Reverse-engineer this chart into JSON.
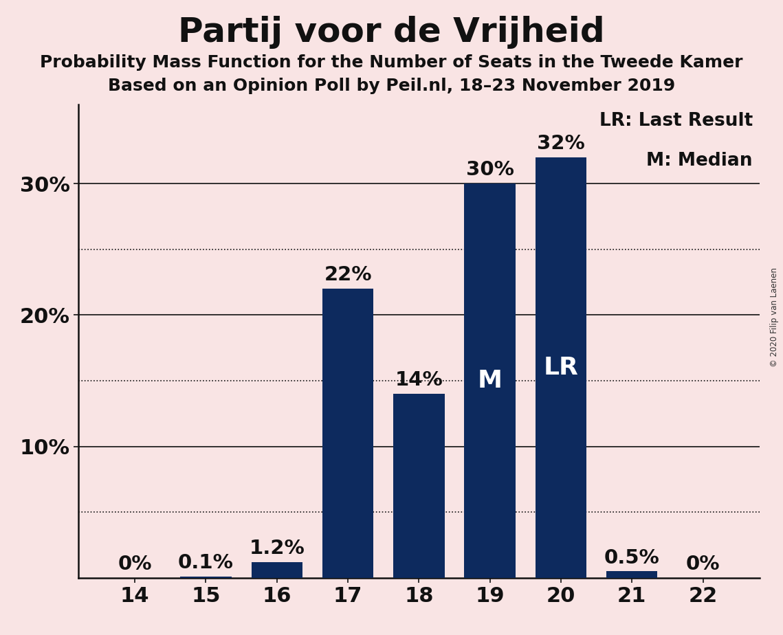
{
  "title": "Partij voor de Vrijheid",
  "subtitle1": "Probability Mass Function for the Number of Seats in the Tweede Kamer",
  "subtitle2": "Based on an Opinion Poll by Peil.nl, 18–23 November 2019",
  "copyright": "© 2020 Filip van Laenen",
  "categories": [
    14,
    15,
    16,
    17,
    18,
    19,
    20,
    21,
    22
  ],
  "values": [
    0.0,
    0.1,
    1.2,
    22.0,
    14.0,
    30.0,
    32.0,
    0.5,
    0.0
  ],
  "bar_color": "#0d2a5e",
  "background_color": "#f9e4e4",
  "solid_gridlines": [
    10,
    20,
    30
  ],
  "dotted_gridlines": [
    5,
    15,
    25
  ],
  "ytick_positions": [
    10,
    20,
    30
  ],
  "ytick_labels": [
    "10%",
    "20%",
    "30%"
  ],
  "ylim": [
    0,
    36
  ],
  "legend_text": [
    "LR: Last Result",
    "M: Median"
  ],
  "label_strings": [
    "0%",
    "0.1%",
    "1.2%",
    "22%",
    "14%",
    "30%",
    "32%",
    "0.5%",
    "0%"
  ],
  "inside_labels": [
    "",
    "",
    "",
    "",
    "",
    "M",
    "LR",
    "",
    ""
  ],
  "title_fontsize": 36,
  "subtitle_fontsize": 18,
  "axis_label_fontsize": 22,
  "bar_label_fontsize": 21,
  "inside_label_fontsize": 26,
  "legend_fontsize": 19
}
